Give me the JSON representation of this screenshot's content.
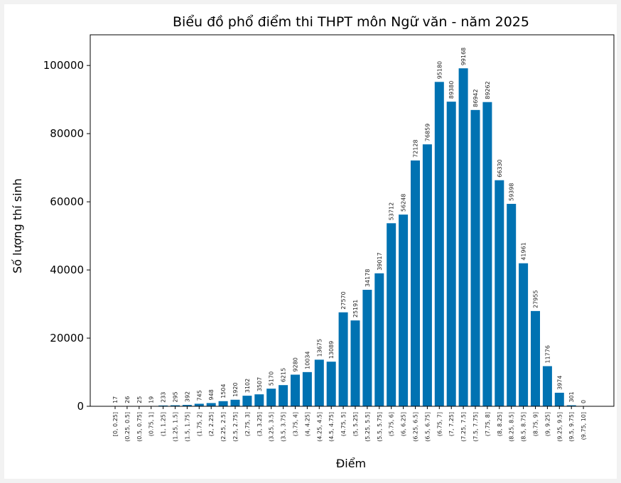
{
  "chart_data": {
    "type": "bar",
    "title": "Biểu đồ phổ điểm thi THPT môn Ngữ văn - năm 2025",
    "xlabel": "Điểm",
    "ylabel": "Số lượng thí sinh",
    "ylim": [
      0,
      109000
    ],
    "yticks": [
      0,
      20000,
      40000,
      60000,
      80000,
      100000
    ],
    "bar_color": "#0072b2",
    "grid": false,
    "categories": [
      "[0, 0.25]",
      "(0.25, 0.5]",
      "(0.5, 0.75]",
      "(0.75, 1]",
      "(1, 1.25]",
      "(1.25, 1.5]",
      "(1.5, 1.75]",
      "(1.75, 2]",
      "(2, 2.25]",
      "(2.25, 2.5]",
      "(2.5, 2.75]",
      "(2.75, 3]",
      "(3, 3.25]",
      "(3.25, 3.5]",
      "(3.5, 3.75]",
      "(3.75, 4]",
      "(4, 4.25]",
      "(4.25, 4.5]",
      "(4.5, 4.75]",
      "(4.75, 5]",
      "(5, 5.25]",
      "(5.25, 5.5]",
      "(5.5, 5.75]",
      "(5.75, 6]",
      "(6, 6.25]",
      "(6.25, 6.5]",
      "(6.5, 6.75]",
      "(6.75, 7]",
      "(7, 7.25]",
      "(7.25, 7.5]",
      "(7.5, 7.75]",
      "(7.75, 8]",
      "(8, 8.25]",
      "(8.25, 8.5]",
      "(8.5, 8.75]",
      "(8.75, 9]",
      "(9, 9.25]",
      "(9.25, 9.5]",
      "(9.5, 9.75]",
      "(9.75, 10]"
    ],
    "values": [
      17,
      26,
      25,
      19,
      233,
      295,
      392,
      745,
      948,
      1504,
      1920,
      3102,
      3507,
      5170,
      6215,
      9280,
      10034,
      13675,
      13089,
      27570,
      25191,
      34178,
      39017,
      53712,
      56248,
      72128,
      76859,
      95180,
      89380,
      99168,
      86942,
      89262,
      66330,
      59398,
      41961,
      27955,
      11776,
      3974,
      301,
      0
    ]
  }
}
